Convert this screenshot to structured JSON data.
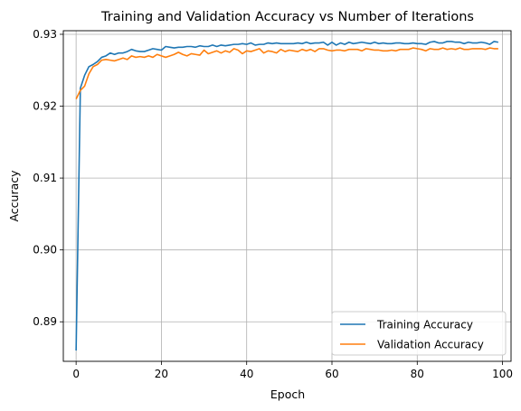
{
  "chart_data": {
    "type": "line",
    "title": "Training and Validation Accuracy vs Number of Iterations",
    "xlabel": "Epoch",
    "ylabel": "Accuracy",
    "xlim": [
      -3,
      102
    ],
    "ylim": [
      0.8845,
      0.9305
    ],
    "xticks": [
      0,
      20,
      40,
      60,
      80,
      100
    ],
    "yticks": [
      0.89,
      0.9,
      0.91,
      0.92,
      0.93
    ],
    "ytick_labels": [
      "0.89",
      "0.90",
      "0.91",
      "0.92",
      "0.93"
    ],
    "grid": true,
    "legend_position": "lower-right",
    "series": [
      {
        "name": "Training Accuracy",
        "color": "#1f77b4",
        "values": [
          0.886,
          0.9225,
          0.9243,
          0.9255,
          0.9258,
          0.9262,
          0.9268,
          0.927,
          0.9274,
          0.9272,
          0.9274,
          0.9274,
          0.9276,
          0.9279,
          0.9277,
          0.9276,
          0.9276,
          0.9278,
          0.928,
          0.9279,
          0.9278,
          0.9283,
          0.9282,
          0.9281,
          0.9282,
          0.9282,
          0.9283,
          0.9283,
          0.9282,
          0.9284,
          0.9283,
          0.9283,
          0.9285,
          0.9283,
          0.9285,
          0.9284,
          0.9285,
          0.9286,
          0.9286,
          0.9287,
          0.9286,
          0.9288,
          0.9285,
          0.9286,
          0.9286,
          0.9288,
          0.9287,
          0.9288,
          0.9287,
          0.9287,
          0.9287,
          0.9287,
          0.9288,
          0.9287,
          0.9289,
          0.9287,
          0.9288,
          0.9288,
          0.9289,
          0.9285,
          0.9289,
          0.9285,
          0.9288,
          0.9286,
          0.9289,
          0.9287,
          0.9288,
          0.9289,
          0.9288,
          0.9287,
          0.9289,
          0.9287,
          0.9288,
          0.9287,
          0.9287,
          0.9288,
          0.9288,
          0.9287,
          0.9287,
          0.9288,
          0.9287,
          0.9287,
          0.9286,
          0.9289,
          0.929,
          0.9288,
          0.9288,
          0.929,
          0.929,
          0.9289,
          0.9289,
          0.9287,
          0.9289,
          0.9288,
          0.9288,
          0.9289,
          0.9288,
          0.9286,
          0.929,
          0.9289
        ]
      },
      {
        "name": "Validation Accuracy",
        "color": "#ff7f0e",
        "values": [
          0.921,
          0.9222,
          0.9228,
          0.9245,
          0.9255,
          0.9258,
          0.9264,
          0.9265,
          0.9264,
          0.9263,
          0.9265,
          0.9267,
          0.9265,
          0.927,
          0.9268,
          0.9269,
          0.9268,
          0.927,
          0.9268,
          0.9272,
          0.927,
          0.9268,
          0.927,
          0.9272,
          0.9275,
          0.9272,
          0.927,
          0.9273,
          0.9272,
          0.9271,
          0.9278,
          0.9273,
          0.9275,
          0.9277,
          0.9274,
          0.9277,
          0.9275,
          0.928,
          0.9278,
          0.9273,
          0.9277,
          0.9276,
          0.9278,
          0.928,
          0.9274,
          0.9277,
          0.9276,
          0.9274,
          0.9279,
          0.9276,
          0.9278,
          0.9277,
          0.9276,
          0.9279,
          0.9277,
          0.9279,
          0.9276,
          0.928,
          0.928,
          0.9278,
          0.9277,
          0.9278,
          0.9278,
          0.9277,
          0.9279,
          0.9279,
          0.9279,
          0.9277,
          0.928,
          0.9279,
          0.9278,
          0.9278,
          0.9277,
          0.9277,
          0.9278,
          0.9277,
          0.9279,
          0.9279,
          0.9279,
          0.9281,
          0.928,
          0.9279,
          0.9277,
          0.928,
          0.9279,
          0.9279,
          0.9281,
          0.9279,
          0.928,
          0.9279,
          0.9281,
          0.9279,
          0.9279,
          0.928,
          0.928,
          0.928,
          0.9279,
          0.9281,
          0.928,
          0.928
        ]
      }
    ]
  }
}
